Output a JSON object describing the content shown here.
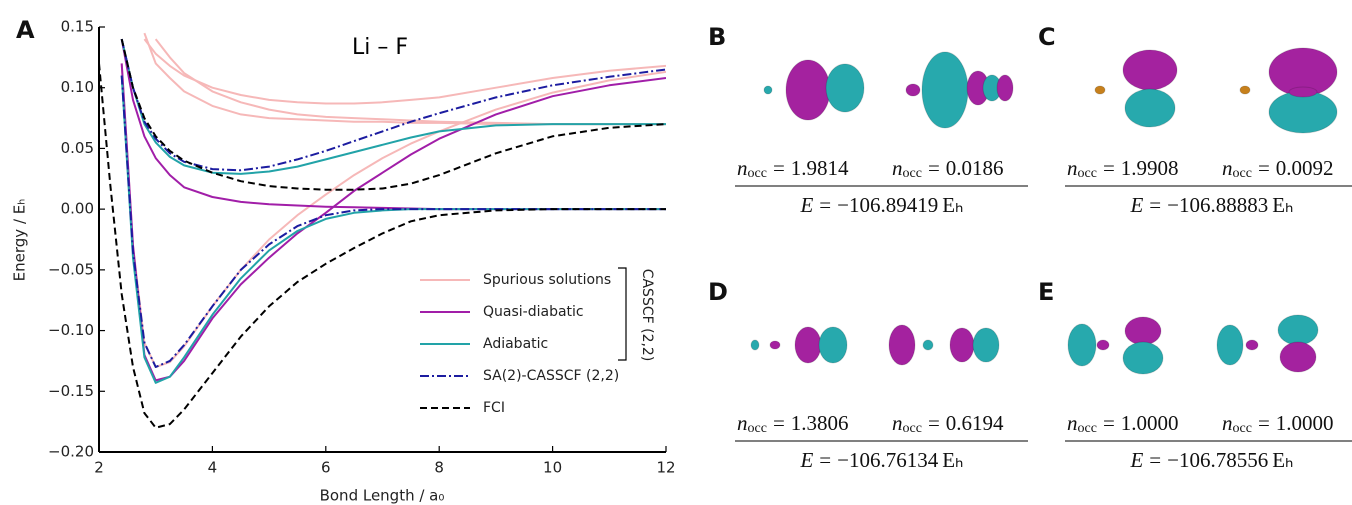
{
  "chart_data": {
    "type": "line",
    "panel_label": "A",
    "annotation": "Li – F",
    "x_label": "Bond Length / a₀",
    "y_label": "Energy / Eₕ",
    "x": [
      2,
      2.2,
      2.4,
      2.6,
      2.8,
      3,
      3.25,
      3.5,
      4,
      4.5,
      5,
      5.5,
      6,
      6.5,
      7,
      7.5,
      8,
      9,
      10,
      11,
      12
    ],
    "xlim": [
      2,
      12
    ],
    "xticks": [
      2,
      4,
      6,
      8,
      10,
      12
    ],
    "ylim": [
      -0.2,
      0.15
    ],
    "yticks": [
      {
        "value": -0.2,
        "label": "−0.20"
      },
      {
        "value": -0.15,
        "label": "−0.15"
      },
      {
        "value": -0.1,
        "label": "−0.10"
      },
      {
        "value": -0.05,
        "label": "−0.05"
      },
      {
        "value": 0,
        "label": "0.00"
      },
      {
        "value": 0.05,
        "label": "0.05"
      },
      {
        "value": 0.1,
        "label": "0.10"
      },
      {
        "value": 0.15,
        "label": "0.15"
      }
    ],
    "bracket_label": "CASSCF (2,2)",
    "series": [
      {
        "name": "Spurious solutions",
        "color": "#f6b8b8",
        "dash": "solid",
        "curves": [
          [
            null,
            null,
            0.12,
            -0.03,
            -0.11,
            -0.13,
            -0.126,
            -0.113,
            -0.08,
            -0.05,
            -0.025,
            -0.005,
            0.012,
            0.028,
            0.042,
            0.054,
            0.064,
            0.082,
            0.096,
            0.106,
            0.113
          ],
          [
            null,
            null,
            null,
            null,
            0.14,
            0.128,
            0.118,
            0.11,
            0.1,
            0.094,
            0.09,
            0.088,
            0.087,
            0.087,
            0.088,
            0.09,
            0.092,
            0.1,
            0.108,
            0.114,
            0.118
          ],
          [
            null,
            null,
            null,
            null,
            null,
            0.14,
            0.125,
            0.112,
            0.097,
            0.088,
            0.082,
            0.078,
            0.076,
            0.075,
            0.074,
            0.073,
            0.072,
            0.071,
            0.07,
            0.07,
            0.07
          ],
          [
            null,
            null,
            null,
            null,
            0.145,
            0.12,
            0.108,
            0.097,
            0.085,
            0.078,
            0.075,
            0.074,
            0.073,
            0.072,
            0.072,
            0.071,
            0.071,
            0.07,
            0.07,
            0.07,
            0.07
          ]
        ]
      },
      {
        "name": "Quasi-diabatic",
        "color": "#a11ea8",
        "dash": "solid",
        "curves": [
          [
            null,
            null,
            0.12,
            -0.03,
            -0.12,
            -0.141,
            -0.138,
            -0.125,
            -0.09,
            -0.062,
            -0.04,
            -0.02,
            -0.003,
            0.015,
            0.03,
            0.045,
            0.058,
            0.078,
            0.093,
            0.102,
            0.108
          ],
          [
            null,
            null,
            0.14,
            0.09,
            0.06,
            0.042,
            0.028,
            0.018,
            0.01,
            0.006,
            0.004,
            0.003,
            0.002,
            0.0015,
            0.001,
            0.0005,
            0,
            0,
            0,
            0,
            0
          ]
        ]
      },
      {
        "name": "Adiabatic",
        "color": "#22a3a8",
        "dash": "solid",
        "curves": [
          [
            null,
            null,
            0.11,
            -0.04,
            -0.122,
            -0.143,
            -0.138,
            -0.122,
            -0.087,
            -0.057,
            -0.034,
            -0.018,
            -0.008,
            -0.003,
            -0.001,
            0,
            0,
            0,
            0,
            0,
            0
          ],
          [
            null,
            null,
            0.14,
            0.1,
            0.07,
            0.055,
            0.043,
            0.036,
            0.03,
            0.029,
            0.031,
            0.035,
            0.041,
            0.047,
            0.053,
            0.059,
            0.064,
            0.069,
            0.07,
            0.07,
            0.07
          ]
        ]
      },
      {
        "name": "SA(2)-CASSCF (2,2)",
        "color": "#1c1ca0",
        "dash": "dashdot",
        "curves": [
          [
            null,
            null,
            0.11,
            -0.035,
            -0.11,
            -0.13,
            -0.125,
            -0.112,
            -0.08,
            -0.05,
            -0.029,
            -0.014,
            -0.005,
            -0.001,
            0,
            0,
            0,
            0,
            0,
            0,
            0
          ],
          [
            null,
            null,
            0.14,
            0.1,
            0.072,
            0.058,
            0.046,
            0.039,
            0.033,
            0.032,
            0.035,
            0.041,
            0.048,
            0.056,
            0.064,
            0.072,
            0.079,
            0.092,
            0.102,
            0.109,
            0.115
          ]
        ]
      },
      {
        "name": "FCI",
        "color": "#000000",
        "dash": "dash",
        "curves": [
          [
            0.12,
            0.02,
            -0.07,
            -0.13,
            -0.168,
            -0.18,
            -0.177,
            -0.165,
            -0.135,
            -0.105,
            -0.08,
            -0.06,
            -0.045,
            -0.032,
            -0.02,
            -0.01,
            -0.005,
            -0.001,
            0,
            0,
            0
          ],
          [
            null,
            null,
            0.14,
            0.1,
            0.075,
            0.06,
            0.048,
            0.04,
            0.03,
            0.023,
            0.019,
            0.017,
            0.016,
            0.016,
            0.017,
            0.021,
            0.028,
            0.046,
            0.06,
            0.067,
            0.07
          ]
        ]
      }
    ]
  },
  "notation": {
    "occupation_symbol": "n",
    "occupation_subscript": "occ",
    "equals": "=",
    "energy_symbol": "E",
    "energy_unit": "Eₕ"
  },
  "panels": [
    {
      "label": "B",
      "occupations": [
        "1.9814",
        "0.0186"
      ],
      "energy": "−106.89419"
    },
    {
      "label": "C",
      "occupations": [
        "1.9908",
        "0.0092"
      ],
      "energy": "−106.88883"
    },
    {
      "label": "D",
      "occupations": [
        "1.3806",
        "0.6194"
      ],
      "energy": "−106.76134"
    },
    {
      "label": "E",
      "occupations": [
        "1.0000",
        "1.0000"
      ],
      "energy": "−106.78556"
    }
  ]
}
